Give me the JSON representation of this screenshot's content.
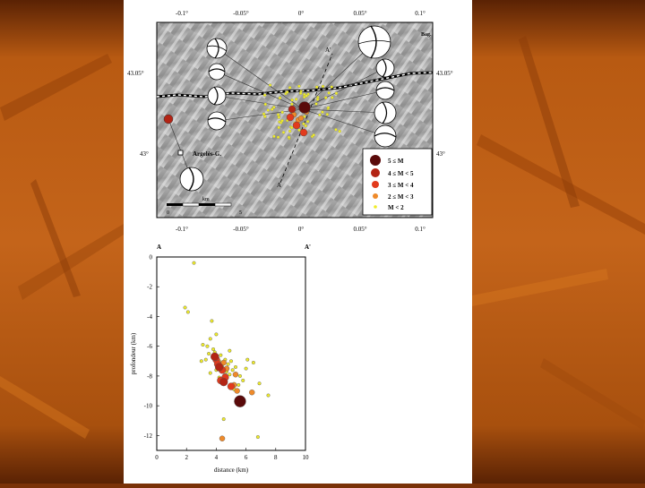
{
  "colors": {
    "background_orange": "#b85a12",
    "background_dark": "#5a2204",
    "m5": "#5a0a0a",
    "m4": "#b32414",
    "m3": "#e23a1c",
    "m2": "#ef8a2a",
    "m1": "#f0ec2a"
  },
  "map": {
    "top_ticks": [
      "-0.1°",
      "-0.05°",
      "0°",
      "0.05°",
      "0.1°"
    ],
    "bottom_ticks": [
      "-0.1°",
      "-0.05°",
      "0°",
      "0.05°",
      "0.1°"
    ],
    "lat_ticks_left": [
      "43.05°",
      "43°"
    ],
    "lat_ticks_right": [
      "43.05°",
      "43°"
    ],
    "town_argeles": "Argelès-G.",
    "town_bag": "Bag.",
    "profile_start": "A",
    "profile_end": "A'",
    "scale_label": "km",
    "scale_zero": "0",
    "scale_five": "5",
    "legend": [
      "5 ≤ M",
      "4 ≤ M < 5",
      "3 ≤ M < 4",
      "2 ≤ M < 3",
      "M < 2"
    ],
    "icons": [
      "focal-mechanism-icon",
      "town-square-icon"
    ]
  },
  "chart_data": {
    "type": "scatter",
    "title": "",
    "corner_left": "A",
    "corner_right": "A'",
    "xlabel": "distance (km)",
    "ylabel": "profondeur (km)",
    "xlim": [
      0,
      10
    ],
    "ylim": [
      -13,
      0
    ],
    "x_ticks": [
      "0",
      "2",
      "4",
      "6",
      "8",
      "10"
    ],
    "y_ticks": [
      "0",
      "-2",
      "-4",
      "-6",
      "-8",
      "-10",
      "-12"
    ],
    "series": [
      {
        "class": "m5",
        "x": [
          5.6
        ],
        "y": [
          -9.7
        ]
      },
      {
        "class": "m4",
        "x": [
          3.9,
          4.5,
          4.2
        ],
        "y": [
          -6.7,
          -8.4,
          -7.4
        ]
      },
      {
        "class": "m3",
        "x": [
          4.0,
          4.1,
          4.4,
          5.0,
          4.6,
          4.3
        ],
        "y": [
          -6.9,
          -7.2,
          -7.6,
          -8.7,
          -8.1,
          -8.3
        ]
      },
      {
        "class": "m2",
        "x": [
          4.4,
          4.7,
          5.2,
          5.4,
          6.4,
          4.6,
          5.3,
          4.5
        ],
        "y": [
          -12.2,
          -7.5,
          -8.6,
          -9.0,
          -9.1,
          -8.0,
          -7.9,
          -7.1
        ]
      },
      {
        "class": "m1",
        "x": [
          2.5,
          1.9,
          2.1,
          3.7,
          3.1,
          3.4,
          3.5,
          3.8,
          3.9,
          4.1,
          4.2,
          4.3,
          4.4,
          4.6,
          4.7,
          4.8,
          4.9,
          5.0,
          5.1,
          5.3,
          5.6,
          5.8,
          6.0,
          6.1,
          6.5,
          6.9,
          7.5,
          4.5,
          6.8,
          3.6,
          4.0,
          4.9,
          5.2,
          3.3,
          3.6,
          4.2,
          4.0,
          3.0,
          5.5
        ],
        "y": [
          -0.4,
          -3.4,
          -3.7,
          -4.3,
          -5.9,
          -6.0,
          -6.5,
          -6.2,
          -6.4,
          -6.8,
          -7.0,
          -6.6,
          -7.3,
          -6.9,
          -7.7,
          -7.2,
          -7.9,
          -7.0,
          -7.6,
          -7.4,
          -8.0,
          -8.3,
          -7.5,
          -6.9,
          -7.1,
          -8.5,
          -9.3,
          -10.9,
          -12.1,
          -5.5,
          -5.2,
          -6.3,
          -8.9,
          -6.9,
          -7.8,
          -8.1,
          -7.6,
          -7.0,
          -8.6
        ]
      }
    ]
  }
}
